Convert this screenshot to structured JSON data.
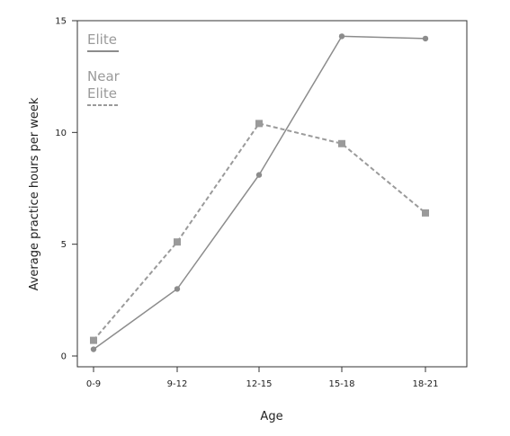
{
  "chart_data": {
    "type": "line",
    "categories": [
      "0-9",
      "9-12",
      "12-15",
      "15-18",
      "18-21"
    ],
    "xlabel": "Age",
    "ylabel": "Average practice hours per week",
    "ylim": [
      0,
      15
    ],
    "yticks": [
      0,
      5,
      10,
      15
    ],
    "grid": false,
    "legend_position": "top-left",
    "series": [
      {
        "name": "Elite",
        "legend_lines": [
          "Elite"
        ],
        "values": [
          0.3,
          3.0,
          8.1,
          14.3,
          14.2
        ],
        "line_style": "solid",
        "marker": "circle",
        "color": "#8c8c8c"
      },
      {
        "name": "Near Elite",
        "legend_lines": [
          "Near",
          "Elite"
        ],
        "values": [
          0.7,
          5.1,
          10.4,
          9.5,
          6.4
        ],
        "line_style": "dashed",
        "marker": "square",
        "color": "#9a9a9a"
      }
    ]
  }
}
